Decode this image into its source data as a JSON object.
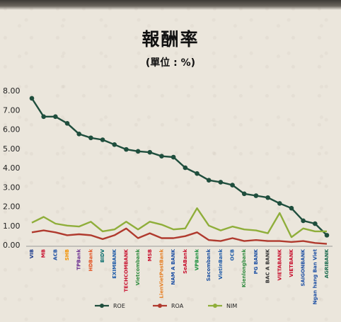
{
  "header": {
    "title": "報酬率",
    "subtitle": "(單位 : %)"
  },
  "chart_data": {
    "type": "line",
    "title": "報酬率",
    "subtitle": "(單位 : %)",
    "xlabel": "",
    "ylabel": "",
    "ylim": [
      0,
      8
    ],
    "yticks": [
      "0.00",
      "1.00",
      "2.00",
      "3.00",
      "4.00",
      "5.00",
      "6.00",
      "7.00",
      "8.00"
    ],
    "grid": false,
    "legend_position": "bottom",
    "categories": [
      "VIB",
      "MB",
      "ACB",
      "SHB",
      "TPBank",
      "HDBank",
      "BIDV",
      "EXIMBANK",
      "TECHCOMBANK",
      "Vietcombank",
      "MSB",
      "LienVietPostBank",
      "NAM A BANK",
      "SeABank",
      "VPBank",
      "Sacombank",
      "VietinBank",
      "OCB",
      "Kienlongbank",
      "PG BANK",
      "BAC A BANK",
      "VIETABANK",
      "VIETBANK",
      "SAIGONBANK",
      "Ngan hang Ban Viet",
      "AGRIBANK"
    ],
    "series": [
      {
        "name": "ROE",
        "color": "#1f4e3d",
        "values": [
          7.6,
          6.65,
          6.65,
          6.3,
          5.75,
          5.55,
          5.45,
          5.2,
          4.95,
          4.85,
          4.8,
          4.6,
          4.55,
          4.0,
          3.7,
          3.35,
          3.25,
          3.1,
          2.65,
          2.55,
          2.45,
          2.15,
          1.9,
          1.25,
          1.1,
          0.5
        ]
      },
      {
        "name": "ROA",
        "color": "#b03a2e",
        "values": [
          0.65,
          0.75,
          0.65,
          0.5,
          0.55,
          0.5,
          0.3,
          0.5,
          0.85,
          0.35,
          0.6,
          0.35,
          0.35,
          0.45,
          0.65,
          0.25,
          0.2,
          0.35,
          0.2,
          0.25,
          0.2,
          0.2,
          0.15,
          0.2,
          0.1,
          0.05
        ]
      },
      {
        "name": "NIM",
        "color": "#8fae3a",
        "values": [
          1.15,
          1.45,
          1.1,
          1.0,
          0.95,
          1.2,
          0.7,
          0.8,
          1.2,
          0.8,
          1.2,
          1.05,
          0.8,
          0.85,
          1.9,
          1.0,
          0.75,
          0.95,
          0.8,
          0.75,
          0.6,
          1.65,
          0.4,
          0.85,
          0.7,
          0.7
        ]
      }
    ]
  },
  "bank_label_colors": [
    "#1b3a8c",
    "#c8102e",
    "#1d4fa3",
    "#f29100",
    "#6a2c8f",
    "#e2501f",
    "#0a6e6e",
    "#1d5aa8",
    "#c8102e",
    "#2e8b3d",
    "#c8102e",
    "#e67e22",
    "#1d4fa3",
    "#c8102e",
    "#1a8f3c",
    "#1b4fa0",
    "#1d5aa8",
    "#1d5aa8",
    "#2e8b3d",
    "#1d4fa3",
    "#333333",
    "#c8102e",
    "#c8102e",
    "#1d4fa3",
    "#1d4fa3",
    "#1a6b4f"
  ]
}
